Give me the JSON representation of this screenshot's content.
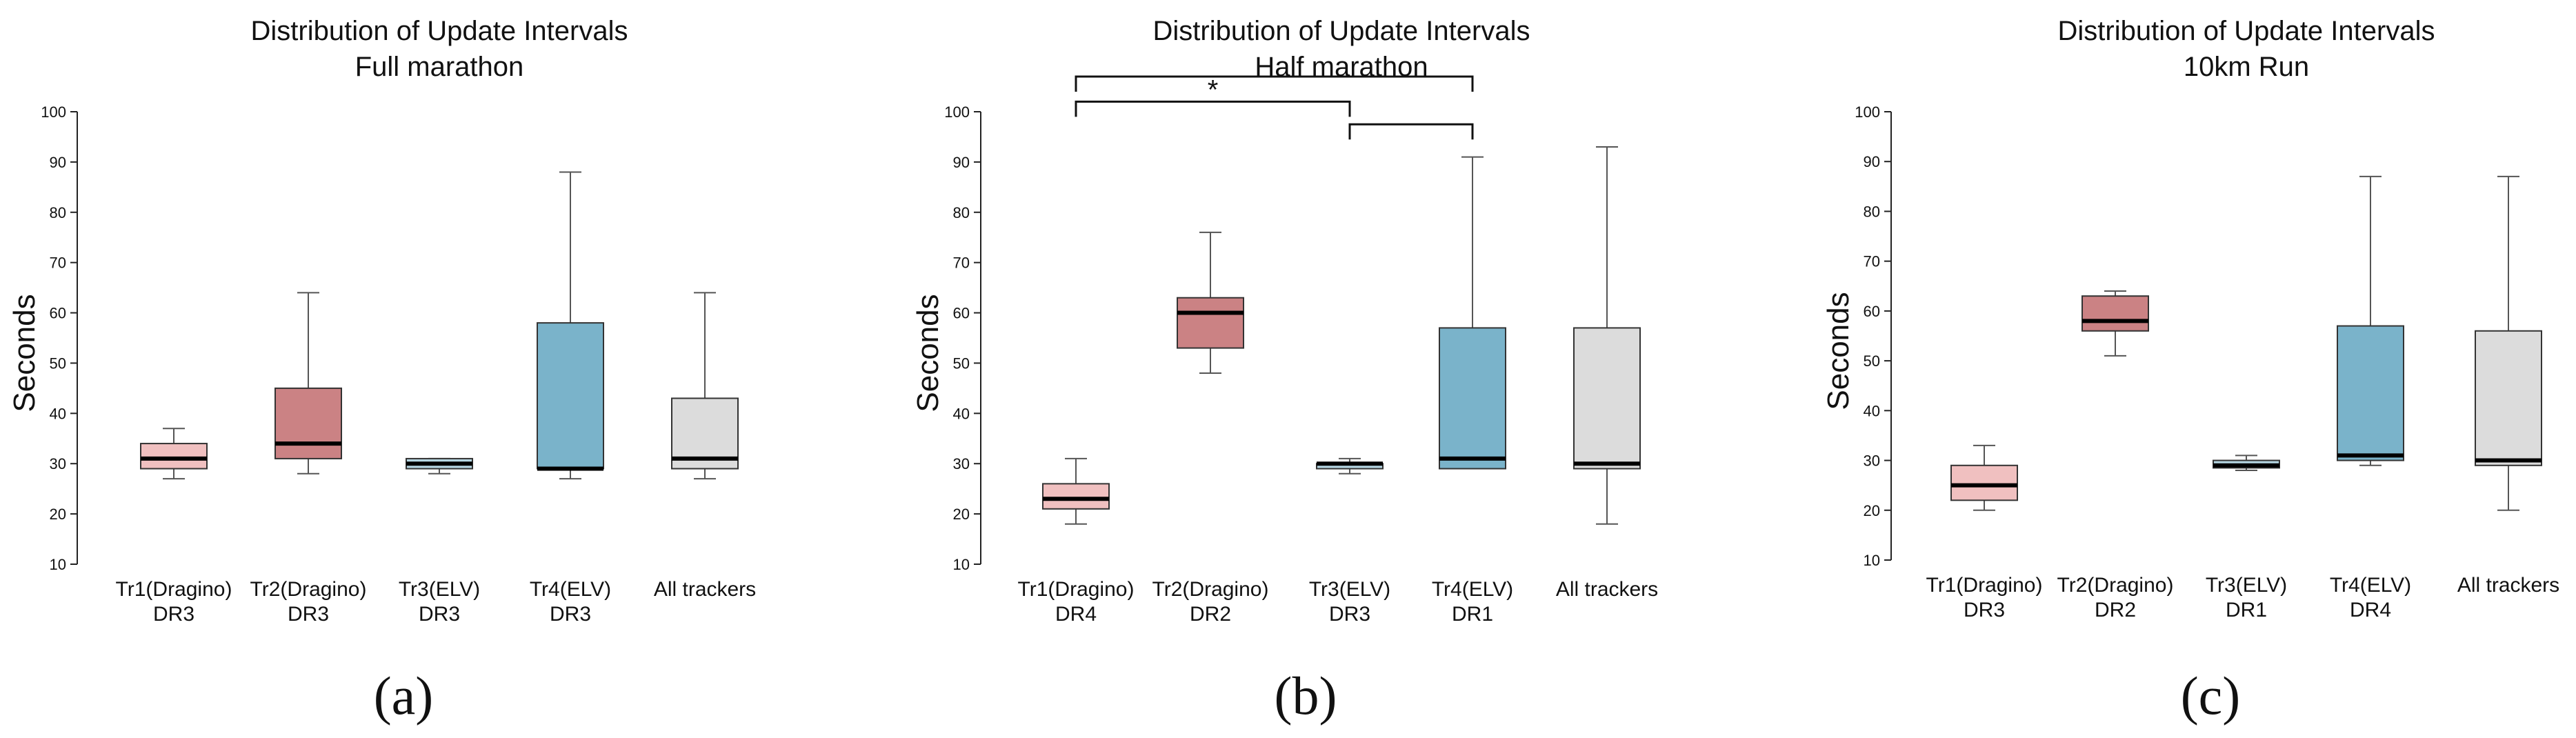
{
  "chart_data": [
    {
      "type": "box",
      "panel_label": "(a)",
      "title": "Distribution of Update Intervals",
      "subtitle": "Full marathon",
      "ylabel": "Seconds",
      "xlabel": "",
      "ylim": [
        10,
        100
      ],
      "yticks": [
        "10",
        "20",
        "30",
        "40",
        "50",
        "60",
        "70",
        "80",
        "90",
        "100"
      ],
      "categories": [
        {
          "line1": "Tr1(Dragino)",
          "line2": "DR3",
          "color": "#f0c0c0",
          "whisker_low": 27,
          "q1": 29,
          "median": 31,
          "q3": 34,
          "whisker_high": 37
        },
        {
          "line1": "Tr2(Dragino)",
          "line2": "DR3",
          "color": "#cb8284",
          "whisker_low": 28,
          "q1": 31,
          "median": 34,
          "q3": 45,
          "whisker_high": 64
        },
        {
          "line1": "Tr3(ELV)",
          "line2": "DR3",
          "color": "#b6d6e2",
          "whisker_low": 28,
          "q1": 29,
          "median": 30,
          "q3": 31,
          "whisker_high": 31
        },
        {
          "line1": "Tr4(ELV)",
          "line2": "DR3",
          "color": "#7ab3ca",
          "whisker_low": 27,
          "q1": 29,
          "median": 29,
          "q3": 58,
          "whisker_high": 88
        },
        {
          "line1": "All trackers",
          "line2": "",
          "color": "#dcdcdc",
          "whisker_low": 27,
          "q1": 29,
          "median": 31,
          "q3": 43,
          "whisker_high": 64
        }
      ],
      "significance": []
    },
    {
      "type": "box",
      "panel_label": "(b)",
      "title": "Distribution of Update Intervals",
      "subtitle": "Half marathon",
      "ylabel": "Seconds",
      "xlabel": "",
      "ylim": [
        10,
        100
      ],
      "yticks": [
        "10",
        "20",
        "30",
        "40",
        "50",
        "60",
        "70",
        "80",
        "90",
        "100"
      ],
      "categories": [
        {
          "line1": "Tr1(Dragino)",
          "line2": "DR4",
          "color": "#f0c0c0",
          "whisker_low": 18,
          "q1": 21,
          "median": 23,
          "q3": 26,
          "whisker_high": 31
        },
        {
          "line1": "Tr2(Dragino)",
          "line2": "DR2",
          "color": "#cb8284",
          "whisker_low": 48,
          "q1": 53,
          "median": 60,
          "q3": 63,
          "whisker_high": 76
        },
        {
          "line1": "Tr3(ELV)",
          "line2": "DR3",
          "color": "#b6d6e2",
          "whisker_low": 28,
          "q1": 29,
          "median": 30,
          "q3": 30,
          "whisker_high": 31
        },
        {
          "line1": "Tr4(ELV)",
          "line2": "DR1",
          "color": "#7ab3ca",
          "whisker_low": 29,
          "q1": 29,
          "median": 31,
          "q3": 57,
          "whisker_high": 91
        },
        {
          "line1": "All trackers",
          "line2": "",
          "color": "#dcdcdc",
          "whisker_low": 18,
          "q1": 29,
          "median": 30,
          "q3": 57,
          "whisker_high": 93
        }
      ],
      "significance": [
        {
          "from": 0,
          "to": 3,
          "level": 107,
          "label": ""
        },
        {
          "from": 0,
          "to": 2,
          "level": 102,
          "label": "*"
        },
        {
          "from": 2,
          "to": 3,
          "level": 97.5,
          "label": ""
        }
      ]
    },
    {
      "type": "box",
      "panel_label": "(c)",
      "title": "Distribution of Update Intervals",
      "subtitle": "10km Run",
      "ylabel": "Seconds",
      "xlabel": "",
      "ylim": [
        10,
        100
      ],
      "yticks": [
        "10",
        "20",
        "30",
        "40",
        "50",
        "60",
        "70",
        "80",
        "90",
        "100"
      ],
      "categories": [
        {
          "line1": "Tr1(Dragino)",
          "line2": "DR3",
          "color": "#f0c0c0",
          "whisker_low": 20,
          "q1": 22,
          "median": 25,
          "q3": 29,
          "whisker_high": 33
        },
        {
          "line1": "Tr2(Dragino)",
          "line2": "DR2",
          "color": "#cb8284",
          "whisker_low": 51,
          "q1": 56,
          "median": 58,
          "q3": 63,
          "whisker_high": 64
        },
        {
          "line1": "Tr3(ELV)",
          "line2": "DR1",
          "color": "#b6d6e2",
          "whisker_low": 28,
          "q1": 28.5,
          "median": 29,
          "q3": 30,
          "whisker_high": 31
        },
        {
          "line1": "Tr4(ELV)",
          "line2": "DR4",
          "color": "#7ab3ca",
          "whisker_low": 29,
          "q1": 30,
          "median": 31,
          "q3": 57,
          "whisker_high": 87
        },
        {
          "line1": "All trackers",
          "line2": "",
          "color": "#dcdcdc",
          "whisker_low": 20,
          "q1": 29,
          "median": 30,
          "q3": 56,
          "whisker_high": 87
        }
      ],
      "significance": []
    }
  ]
}
